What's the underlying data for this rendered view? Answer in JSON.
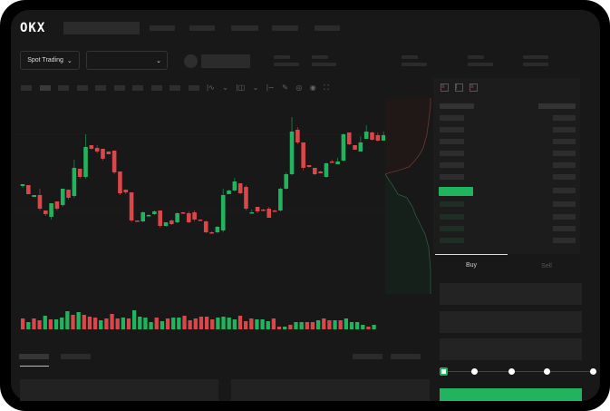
{
  "brand": {
    "logo": "OKX"
  },
  "header": {
    "market_selector": "Spot Trading"
  },
  "trade": {
    "tabs": [
      "Buy",
      "Sell"
    ],
    "active_tab": "Buy",
    "leverage_slider": {
      "steps": 5,
      "value_index": 0
    }
  },
  "colors": {
    "up": "#22b35e",
    "down": "#d9474a",
    "background": "#181818",
    "accent": "#22b35e"
  },
  "icons": [
    "chevron-down-icon",
    "line-tool-icon",
    "pencil-icon",
    "camera-icon",
    "target-icon",
    "fullscreen-icon",
    "orderbook-both-icon",
    "orderbook-bids-icon",
    "orderbook-asks-icon"
  ],
  "chart_data": {
    "type": "candlestick",
    "candles": [
      [
        95,
        97,
        97,
        93
      ],
      [
        96,
        86,
        96,
        86
      ],
      [
        83,
        85,
        85,
        83
      ],
      [
        85,
        70,
        92,
        68
      ],
      [
        68,
        64,
        68,
        62
      ],
      [
        61,
        76,
        76,
        58
      ],
      [
        78,
        70,
        78,
        68
      ],
      [
        74,
        92,
        92,
        72
      ],
      [
        91,
        82,
        91,
        80
      ],
      [
        84,
        115,
        124,
        82
      ],
      [
        114,
        105,
        114,
        103
      ],
      [
        105,
        138,
        152,
        103
      ],
      [
        140,
        136,
        140,
        135
      ],
      [
        137,
        133,
        140,
        131
      ],
      [
        136,
        125,
        136,
        123
      ],
      [
        133,
        130,
        133,
        130
      ],
      [
        134,
        110,
        134,
        108
      ],
      [
        111,
        87,
        111,
        85
      ],
      [
        91,
        88,
        91,
        86
      ],
      [
        88,
        57,
        88,
        55
      ],
      [
        57,
        56,
        57,
        56
      ],
      [
        56,
        66,
        67,
        55
      ],
      [
        62,
        63,
        64,
        62
      ],
      [
        64,
        67,
        68,
        63
      ],
      [
        68,
        51,
        68,
        49
      ],
      [
        51,
        55,
        55,
        50
      ],
      [
        57,
        53,
        58,
        52
      ],
      [
        55,
        65,
        66,
        54
      ],
      [
        66,
        65,
        66,
        64
      ],
      [
        65,
        55,
        67,
        54
      ],
      [
        66,
        58,
        68,
        56
      ],
      [
        58,
        57,
        58,
        57
      ],
      [
        56,
        44,
        57,
        43
      ],
      [
        44,
        43,
        45,
        43
      ],
      [
        44,
        50,
        51,
        43
      ],
      [
        46,
        85,
        92,
        44
      ],
      [
        86,
        90,
        91,
        86
      ],
      [
        90,
        100,
        104,
        89
      ],
      [
        98,
        87,
        98,
        86
      ],
      [
        94,
        70,
        96,
        68
      ],
      [
        65,
        66,
        69,
        65
      ],
      [
        72,
        67,
        72,
        65
      ],
      [
        69,
        68,
        70,
        68
      ],
      [
        70,
        60,
        72,
        60
      ],
      [
        68,
        67,
        69,
        67
      ],
      [
        68,
        92,
        93,
        67
      ],
      [
        92,
        108,
        110,
        91
      ],
      [
        108,
        155,
        171,
        107
      ],
      [
        157,
        143,
        160,
        141
      ],
      [
        143,
        115,
        143,
        112
      ],
      [
        118,
        116,
        118,
        115
      ],
      [
        115,
        108,
        115,
        107
      ],
      [
        111,
        109,
        112,
        109
      ],
      [
        105,
        120,
        121,
        104
      ],
      [
        122,
        121,
        124,
        121
      ],
      [
        119,
        122,
        126,
        119
      ],
      [
        123,
        152,
        153,
        122
      ],
      [
        154,
        141,
        154,
        140
      ],
      [
        140,
        135,
        140,
        135
      ],
      [
        133,
        143,
        150,
        133
      ],
      [
        147,
        155,
        162,
        147
      ],
      [
        154,
        146,
        155,
        145
      ],
      [
        151,
        145,
        154,
        144
      ],
      [
        145,
        151,
        155,
        145
      ]
    ],
    "volumes": [
      [
        "d",
        12
      ],
      [
        "u",
        8
      ],
      [
        "d",
        12
      ],
      [
        "d",
        10
      ],
      [
        "u",
        15
      ],
      [
        "d",
        11
      ],
      [
        "u",
        11
      ],
      [
        "u",
        13
      ],
      [
        "u",
        20
      ],
      [
        "d",
        16
      ],
      [
        "u",
        19
      ],
      [
        "d",
        16
      ],
      [
        "d",
        14
      ],
      [
        "d",
        13
      ],
      [
        "u",
        10
      ],
      [
        "d",
        12
      ],
      [
        "d",
        17
      ],
      [
        "d",
        12
      ],
      [
        "u",
        13
      ],
      [
        "d",
        12
      ],
      [
        "u",
        21
      ],
      [
        "u",
        14
      ],
      [
        "u",
        13
      ],
      [
        "u",
        8
      ],
      [
        "d",
        13
      ],
      [
        "u",
        9
      ],
      [
        "d",
        12
      ],
      [
        "u",
        13
      ],
      [
        "u",
        13
      ],
      [
        "d",
        15
      ],
      [
        "d",
        10
      ],
      [
        "d",
        12
      ],
      [
        "d",
        14
      ],
      [
        "d",
        14
      ],
      [
        "d",
        11
      ],
      [
        "u",
        13
      ],
      [
        "u",
        14
      ],
      [
        "u",
        13
      ],
      [
        "u",
        11
      ],
      [
        "d",
        15
      ],
      [
        "d",
        9
      ],
      [
        "d",
        12
      ],
      [
        "u",
        11
      ],
      [
        "u",
        11
      ],
      [
        "u",
        9
      ],
      [
        "d",
        12
      ],
      [
        "d",
        3
      ],
      [
        "u",
        3
      ],
      [
        "d",
        5
      ],
      [
        "u",
        8
      ],
      [
        "u",
        8
      ],
      [
        "d",
        8
      ],
      [
        "d",
        8
      ],
      [
        "u",
        10
      ],
      [
        "d",
        12
      ],
      [
        "d",
        10
      ],
      [
        "u",
        10
      ],
      [
        "d",
        10
      ],
      [
        "u",
        12
      ],
      [
        "u",
        8
      ],
      [
        "u",
        8
      ],
      [
        "u",
        5
      ],
      [
        "d",
        3
      ],
      [
        "u",
        5
      ]
    ]
  }
}
